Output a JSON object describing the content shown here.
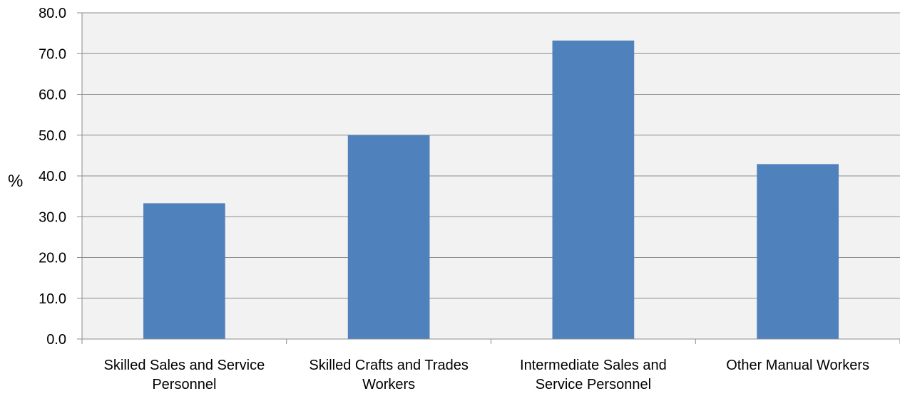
{
  "chart_data": {
    "type": "bar",
    "categories": [
      [
        "Skilled Sales and Service",
        "Personnel"
      ],
      [
        "Skilled Crafts and Trades",
        "Workers"
      ],
      [
        "Intermediate Sales and",
        "Service Personnel"
      ],
      [
        "Other Manual Workers"
      ]
    ],
    "values": [
      33.3,
      50.0,
      73.2,
      42.9
    ],
    "ylabel": "%",
    "ylim": [
      0,
      80
    ],
    "yticks": [
      "0.0",
      "10.0",
      "20.0",
      "30.0",
      "40.0",
      "50.0",
      "60.0",
      "70.0",
      "80.0"
    ],
    "grid": true,
    "legend": "none",
    "colors": {
      "bar": "#4F81BD",
      "plot_background": "#F2F2F2",
      "grid": "#8C8C8C",
      "axis": "#8C8C8C"
    }
  }
}
